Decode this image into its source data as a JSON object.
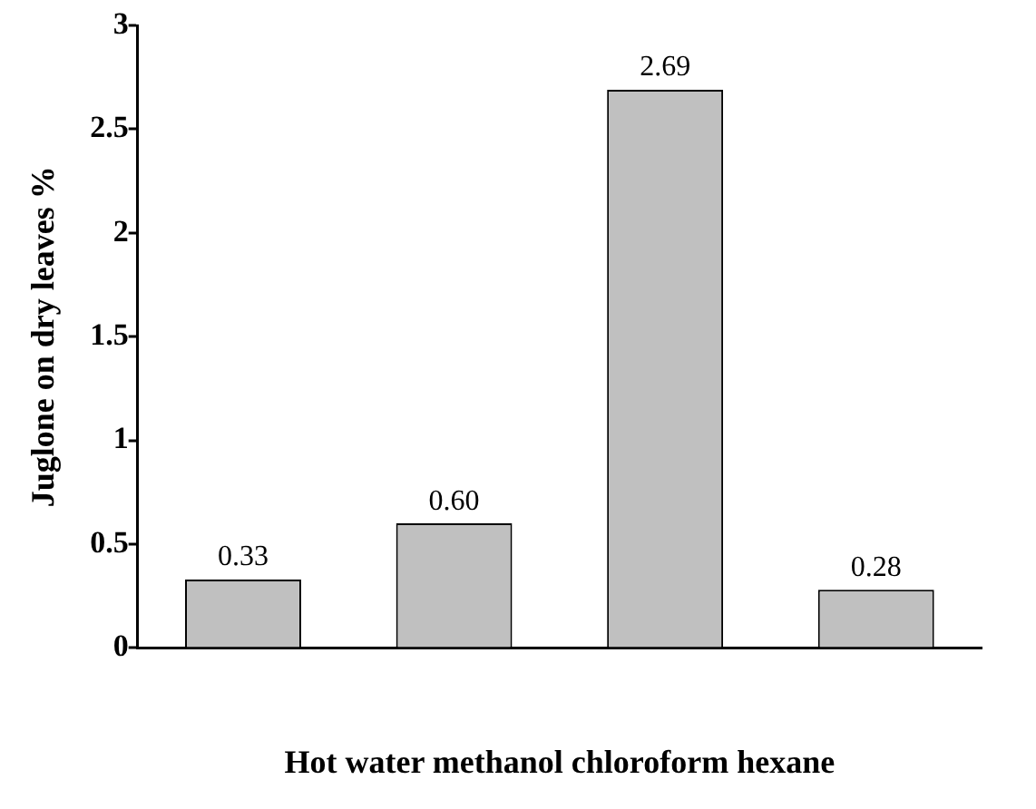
{
  "chart_data": {
    "type": "bar",
    "xlabel": "Hot water methanol chloroform hexane",
    "ylabel": "Juglone on dry leaves %",
    "categories": [
      null,
      null,
      null,
      null
    ],
    "values": [
      0.33,
      0.6,
      2.69,
      0.28
    ],
    "value_labels": [
      "0.33",
      "0.60",
      "2.69",
      "0.28"
    ],
    "color": "#c0c0c0",
    "ylim": [
      0,
      3
    ],
    "yticks": [
      0,
      0.5,
      1,
      1.5,
      2,
      2.5,
      3
    ],
    "grid": false,
    "legend": false
  }
}
